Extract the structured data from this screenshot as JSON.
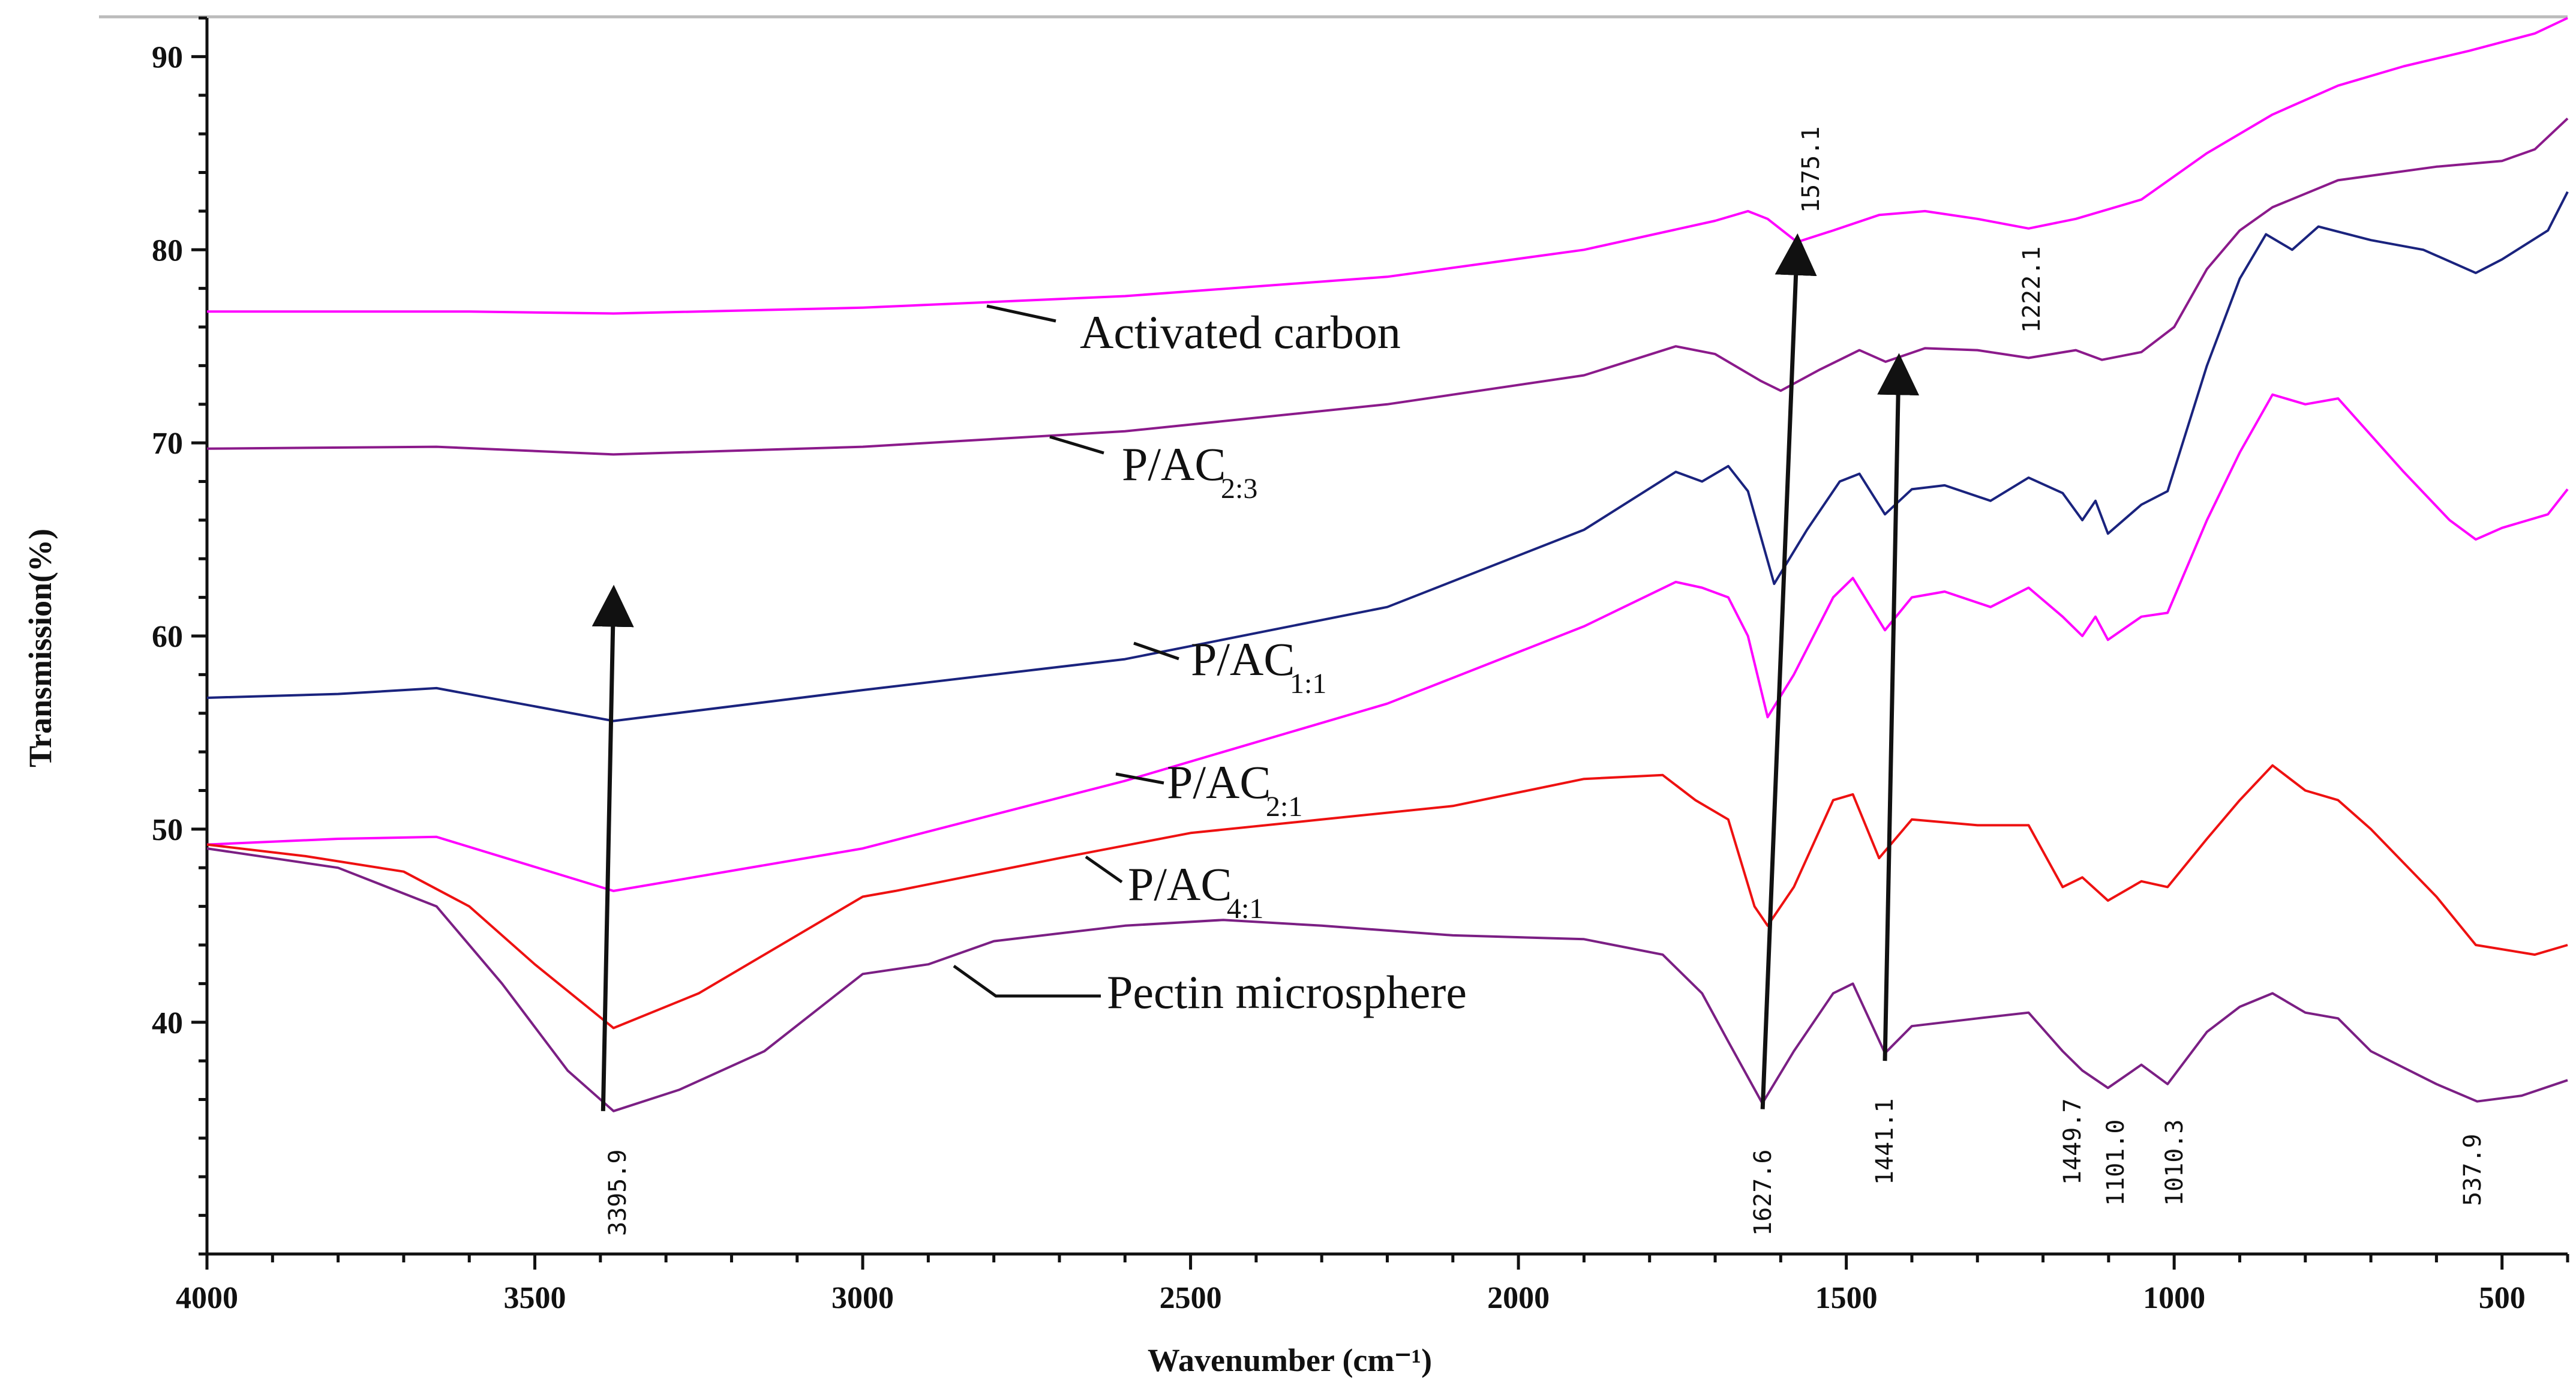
{
  "chart_data": {
    "type": "line",
    "title": "",
    "xlabel": "Wavenumber (cm⁻¹)",
    "ylabel": "Transmission(%)",
    "xlim": [
      4000,
      400
    ],
    "ylim": [
      28,
      92
    ],
    "x_ticks": [
      4000,
      3500,
      3000,
      2500,
      2000,
      1500,
      1000,
      500
    ],
    "y_ticks": [
      40,
      50,
      60,
      70,
      80,
      90
    ],
    "series": [
      {
        "name": "Activated carbon",
        "base": "P/AC",
        "sub": "",
        "display": "Activated carbon",
        "color": "#ff00ff",
        "points": [
          [
            4000,
            76.8
          ],
          [
            3600,
            76.8
          ],
          [
            3380,
            76.7
          ],
          [
            3000,
            77.0
          ],
          [
            2600,
            77.6
          ],
          [
            2200,
            78.6
          ],
          [
            1900,
            80.0
          ],
          [
            1700,
            81.5
          ],
          [
            1650,
            82.0
          ],
          [
            1620,
            81.6
          ],
          [
            1575,
            80.4
          ],
          [
            1520,
            81.0
          ],
          [
            1450,
            81.8
          ],
          [
            1380,
            82.0
          ],
          [
            1300,
            81.6
          ],
          [
            1222,
            81.1
          ],
          [
            1150,
            81.6
          ],
          [
            1050,
            82.6
          ],
          [
            950,
            85.0
          ],
          [
            850,
            87.0
          ],
          [
            750,
            88.5
          ],
          [
            650,
            89.5
          ],
          [
            550,
            90.3
          ],
          [
            450,
            91.2
          ],
          [
            400,
            92.0
          ]
        ]
      },
      {
        "name": "P/AC 2:3",
        "base": "P/AC",
        "sub": "2:3",
        "display": "",
        "color": "#8b1a8b",
        "points": [
          [
            4000,
            69.7
          ],
          [
            3650,
            69.8
          ],
          [
            3380,
            69.4
          ],
          [
            3000,
            69.8
          ],
          [
            2600,
            70.6
          ],
          [
            2200,
            72.0
          ],
          [
            1900,
            73.5
          ],
          [
            1760,
            75.0
          ],
          [
            1700,
            74.6
          ],
          [
            1630,
            73.2
          ],
          [
            1600,
            72.7
          ],
          [
            1540,
            73.8
          ],
          [
            1480,
            74.8
          ],
          [
            1440,
            74.2
          ],
          [
            1380,
            74.9
          ],
          [
            1300,
            74.8
          ],
          [
            1222,
            74.4
          ],
          [
            1150,
            74.8
          ],
          [
            1110,
            74.3
          ],
          [
            1050,
            74.7
          ],
          [
            1000,
            76.0
          ],
          [
            950,
            79.0
          ],
          [
            900,
            81.0
          ],
          [
            850,
            82.2
          ],
          [
            750,
            83.6
          ],
          [
            600,
            84.3
          ],
          [
            500,
            84.6
          ],
          [
            450,
            85.2
          ],
          [
            400,
            86.8
          ]
        ]
      },
      {
        "name": "P/AC 1:1",
        "base": "P/AC",
        "sub": "1:1",
        "display": "",
        "color": "#1a237e",
        "points": [
          [
            4000,
            56.8
          ],
          [
            3800,
            57.0
          ],
          [
            3650,
            57.3
          ],
          [
            3380,
            55.6
          ],
          [
            3000,
            57.2
          ],
          [
            2600,
            58.8
          ],
          [
            2200,
            61.5
          ],
          [
            1900,
            65.5
          ],
          [
            1760,
            68.5
          ],
          [
            1720,
            68.0
          ],
          [
            1680,
            68.8
          ],
          [
            1650,
            67.5
          ],
          [
            1610,
            62.7
          ],
          [
            1560,
            65.5
          ],
          [
            1510,
            68.0
          ],
          [
            1480,
            68.4
          ],
          [
            1441,
            66.3
          ],
          [
            1400,
            67.6
          ],
          [
            1350,
            67.8
          ],
          [
            1280,
            67.0
          ],
          [
            1222,
            68.2
          ],
          [
            1170,
            67.4
          ],
          [
            1140,
            66.0
          ],
          [
            1120,
            67.0
          ],
          [
            1101,
            65.3
          ],
          [
            1050,
            66.8
          ],
          [
            1010,
            67.5
          ],
          [
            950,
            74.0
          ],
          [
            900,
            78.5
          ],
          [
            860,
            80.8
          ],
          [
            820,
            80.0
          ],
          [
            780,
            81.2
          ],
          [
            700,
            80.5
          ],
          [
            620,
            80.0
          ],
          [
            540,
            78.8
          ],
          [
            500,
            79.5
          ],
          [
            430,
            81.0
          ],
          [
            400,
            83.0
          ]
        ]
      },
      {
        "name": "P/AC 2:1",
        "base": "P/AC",
        "sub": "2:1",
        "display": "",
        "color": "#ff00ff",
        "points": [
          [
            4000,
            49.2
          ],
          [
            3800,
            49.5
          ],
          [
            3650,
            49.6
          ],
          [
            3380,
            46.8
          ],
          [
            3000,
            49.0
          ],
          [
            2600,
            52.5
          ],
          [
            2200,
            56.5
          ],
          [
            1900,
            60.5
          ],
          [
            1760,
            62.8
          ],
          [
            1720,
            62.5
          ],
          [
            1680,
            62.0
          ],
          [
            1650,
            60.0
          ],
          [
            1620,
            55.8
          ],
          [
            1580,
            58.0
          ],
          [
            1520,
            62.0
          ],
          [
            1490,
            63.0
          ],
          [
            1441,
            60.3
          ],
          [
            1400,
            62.0
          ],
          [
            1350,
            62.3
          ],
          [
            1280,
            61.5
          ],
          [
            1222,
            62.5
          ],
          [
            1170,
            61.0
          ],
          [
            1140,
            60.0
          ],
          [
            1120,
            61.0
          ],
          [
            1101,
            59.8
          ],
          [
            1050,
            61.0
          ],
          [
            1010,
            61.2
          ],
          [
            950,
            66.0
          ],
          [
            900,
            69.5
          ],
          [
            850,
            72.5
          ],
          [
            800,
            72.0
          ],
          [
            750,
            72.3
          ],
          [
            650,
            68.5
          ],
          [
            580,
            66.0
          ],
          [
            540,
            65.0
          ],
          [
            500,
            65.6
          ],
          [
            430,
            66.3
          ],
          [
            400,
            67.6
          ]
        ]
      },
      {
        "name": "P/AC 4:1",
        "base": "P/AC",
        "sub": "4:1",
        "display": "",
        "color": "#ee1111",
        "points": [
          [
            4000,
            49.2
          ],
          [
            3850,
            48.6
          ],
          [
            3700,
            47.8
          ],
          [
            3600,
            46.0
          ],
          [
            3500,
            43.0
          ],
          [
            3380,
            39.7
          ],
          [
            3250,
            41.5
          ],
          [
            3000,
            46.5
          ],
          [
            2950,
            46.8
          ],
          [
            2700,
            48.5
          ],
          [
            2500,
            49.8
          ],
          [
            2300,
            50.5
          ],
          [
            2100,
            51.2
          ],
          [
            1900,
            52.6
          ],
          [
            1780,
            52.8
          ],
          [
            1730,
            51.5
          ],
          [
            1680,
            50.5
          ],
          [
            1640,
            46.0
          ],
          [
            1620,
            45.0
          ],
          [
            1580,
            47.0
          ],
          [
            1520,
            51.5
          ],
          [
            1490,
            51.8
          ],
          [
            1450,
            48.5
          ],
          [
            1400,
            50.5
          ],
          [
            1300,
            50.2
          ],
          [
            1222,
            50.2
          ],
          [
            1170,
            47.0
          ],
          [
            1140,
            47.5
          ],
          [
            1101,
            46.3
          ],
          [
            1050,
            47.3
          ],
          [
            1010,
            47.0
          ],
          [
            950,
            49.5
          ],
          [
            900,
            51.5
          ],
          [
            850,
            53.3
          ],
          [
            800,
            52.0
          ],
          [
            750,
            51.5
          ],
          [
            700,
            50.0
          ],
          [
            600,
            46.5
          ],
          [
            540,
            44.0
          ],
          [
            450,
            43.5
          ],
          [
            400,
            44.0
          ]
        ]
      },
      {
        "name": "Pectin microsphere",
        "base": "P/AC",
        "sub": "",
        "display": "Pectin microsphere",
        "color": "#7b1f84",
        "points": [
          [
            4000,
            49.0
          ],
          [
            3800,
            48.0
          ],
          [
            3650,
            46.0
          ],
          [
            3550,
            42.0
          ],
          [
            3450,
            37.5
          ],
          [
            3380,
            35.4
          ],
          [
            3280,
            36.5
          ],
          [
            3150,
            38.5
          ],
          [
            3000,
            42.5
          ],
          [
            2900,
            43.0
          ],
          [
            2800,
            44.2
          ],
          [
            2600,
            45.0
          ],
          [
            2450,
            45.3
          ],
          [
            2300,
            45.0
          ],
          [
            2100,
            44.5
          ],
          [
            1900,
            44.3
          ],
          [
            1780,
            43.5
          ],
          [
            1720,
            41.5
          ],
          [
            1680,
            39.0
          ],
          [
            1628,
            35.8
          ],
          [
            1580,
            38.5
          ],
          [
            1520,
            41.5
          ],
          [
            1490,
            42.0
          ],
          [
            1441,
            38.4
          ],
          [
            1400,
            39.8
          ],
          [
            1300,
            40.2
          ],
          [
            1222,
            40.5
          ],
          [
            1170,
            38.5
          ],
          [
            1140,
            37.5
          ],
          [
            1101,
            36.6
          ],
          [
            1050,
            37.8
          ],
          [
            1010,
            36.8
          ],
          [
            950,
            39.5
          ],
          [
            900,
            40.8
          ],
          [
            850,
            41.5
          ],
          [
            800,
            40.5
          ],
          [
            750,
            40.2
          ],
          [
            700,
            38.5
          ],
          [
            600,
            36.8
          ],
          [
            538,
            35.9
          ],
          [
            470,
            36.2
          ],
          [
            400,
            37.0
          ]
        ]
      }
    ],
    "annotations": {
      "peaks": [
        "3395.9",
        "1627.6",
        "1575.1",
        "1441.1",
        "1222.1",
        "1449.7",
        "1101.0",
        "1010.3",
        "537.9"
      ],
      "arrows": [
        {
          "from": [
            3395.9,
            35.4
          ],
          "to": [
            3380,
            62.0
          ]
        },
        {
          "from": [
            1627.6,
            35.5
          ],
          "to": [
            1575.1,
            80.2
          ]
        },
        {
          "from": [
            1441.1,
            38.0
          ],
          "to": [
            1420,
            74.0
          ]
        }
      ]
    }
  }
}
